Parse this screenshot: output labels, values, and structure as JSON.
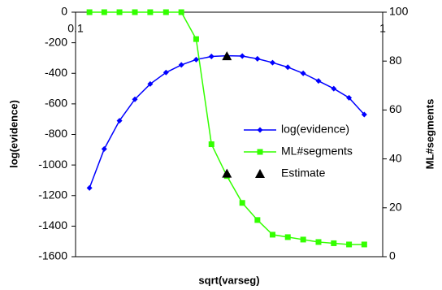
{
  "chart_data": {
    "type": "line",
    "x_label": "sqrt(varseg)",
    "y_label": "log(evidence)",
    "y2_label": "ML#segments",
    "xscale": "log",
    "xlim": [
      0.1,
      1
    ],
    "xticks": [
      0.1,
      1
    ],
    "ylim": [
      -1600,
      0
    ],
    "yticks": [
      -1600,
      -1400,
      -1200,
      -1000,
      -800,
      -600,
      -400,
      -200,
      0
    ],
    "y2lim": [
      0,
      100
    ],
    "y2ticks": [
      0,
      20,
      40,
      60,
      80,
      100
    ],
    "x": [
      0.111,
      0.124,
      0.139,
      0.156,
      0.175,
      0.197,
      0.221,
      0.247,
      0.277,
      0.311,
      0.349,
      0.391,
      0.438,
      0.491,
      0.551,
      0.618,
      0.693,
      0.777,
      0.871
    ],
    "series": [
      {
        "name": "log(evidence)",
        "color": "#0000ff",
        "marker": "diamond",
        "axis": "y",
        "values": [
          -1150,
          -895,
          -710,
          -570,
          -470,
          -395,
          -345,
          -310,
          -290,
          -285,
          -287,
          -305,
          -330,
          -360,
          -400,
          -450,
          -500,
          -560,
          -670
        ]
      },
      {
        "name": "ML#segments",
        "color": "#33ff00",
        "marker": "square",
        "axis": "y2",
        "values": [
          100,
          100,
          100,
          100,
          100,
          100,
          100,
          89,
          46,
          33,
          22,
          15,
          9,
          8,
          7,
          6,
          5.5,
          5,
          5
        ]
      },
      {
        "name": "Estimate",
        "color": "#000000",
        "marker": "triangle",
        "axis": "y2",
        "line": false,
        "x": [
          0.311,
          0.311
        ],
        "values": [
          82,
          34
        ]
      }
    ]
  }
}
